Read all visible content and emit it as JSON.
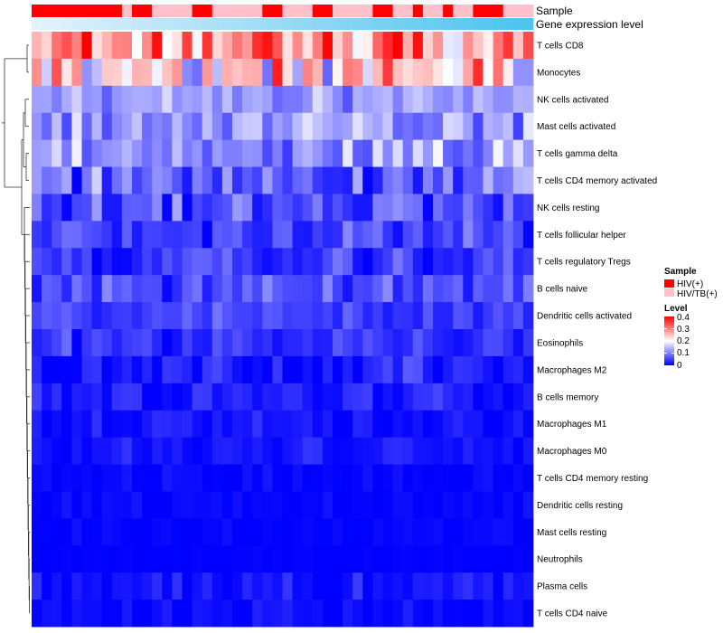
{
  "chart_data": {
    "type": "heatmap",
    "annotation_rows": [
      "Sample",
      "Gene expression level"
    ],
    "rows": [
      "T cells CD8",
      "Monocytes",
      "NK cells activated",
      "Mast cells activated",
      "T cells gamma delta",
      "T cells CD4 memory activated",
      "NK cells resting",
      "T cells follicular helper",
      "T cells regulatory  Tregs",
      "B cells naive",
      "Dendritic cells activated",
      "Eosinophils",
      "Macrophages M2",
      "B cells memory",
      "Macrophages M1",
      "Macrophages M0",
      "T cells CD4 memory resting",
      "Dendritic cells resting",
      "Mast cells resting",
      "Neutrophils",
      "Plasma cells",
      "T cells CD4 naive"
    ],
    "n_samples": 50,
    "sample_groups": [
      0,
      0,
      0,
      0,
      0,
      0,
      0,
      0,
      0,
      1,
      0,
      0,
      1,
      1,
      1,
      1,
      0,
      0,
      1,
      1,
      1,
      1,
      1,
      0,
      0,
      1,
      1,
      1,
      0,
      0,
      1,
      1,
      1,
      1,
      0,
      0,
      1,
      1,
      0,
      1,
      1,
      0,
      1,
      1,
      0,
      0,
      0,
      1,
      1,
      1
    ],
    "legends": {
      "sample": {
        "title": "Sample",
        "entries": [
          {
            "label": "HIV(+)",
            "color": "#ff0000"
          },
          {
            "label": "HIV/TB(+)",
            "color": "#ffc0cb"
          }
        ]
      },
      "level": {
        "title": "Level",
        "ticks": [
          "0.4",
          "0.3",
          "0.2",
          "0.1",
          "0"
        ],
        "range": [
          0,
          0.4
        ]
      }
    },
    "colors": {
      "low": "#0000ff",
      "mid": "#ffffff",
      "high": "#ff0000",
      "gradient_start": "#e3f2fb",
      "gradient_end": "#4dc3f0"
    },
    "row_profiles": [
      {
        "mean": 0.3,
        "spread": 0.09
      },
      {
        "mean": 0.22,
        "spread": 0.09
      },
      {
        "mean": 0.12,
        "spread": 0.03
      },
      {
        "mean": 0.12,
        "spread": 0.04
      },
      {
        "mean": 0.12,
        "spread": 0.05
      },
      {
        "mean": 0.08,
        "spread": 0.05
      },
      {
        "mean": 0.06,
        "spread": 0.04
      },
      {
        "mean": 0.05,
        "spread": 0.03
      },
      {
        "mean": 0.04,
        "spread": 0.03
      },
      {
        "mean": 0.06,
        "spread": 0.03
      },
      {
        "mean": 0.05,
        "spread": 0.025
      },
      {
        "mean": 0.04,
        "spread": 0.025
      },
      {
        "mean": 0.025,
        "spread": 0.025
      },
      {
        "mean": 0.02,
        "spread": 0.02
      },
      {
        "mean": 0.015,
        "spread": 0.015
      },
      {
        "mean": 0.015,
        "spread": 0.015
      },
      {
        "mean": 0.005,
        "spread": 0.008
      },
      {
        "mean": 0.005,
        "spread": 0.008
      },
      {
        "mean": 0.003,
        "spread": 0.006
      },
      {
        "mean": 0.0,
        "spread": 0.003
      },
      {
        "mean": 0.015,
        "spread": 0.02
      },
      {
        "mean": 0.008,
        "spread": 0.012
      }
    ]
  }
}
